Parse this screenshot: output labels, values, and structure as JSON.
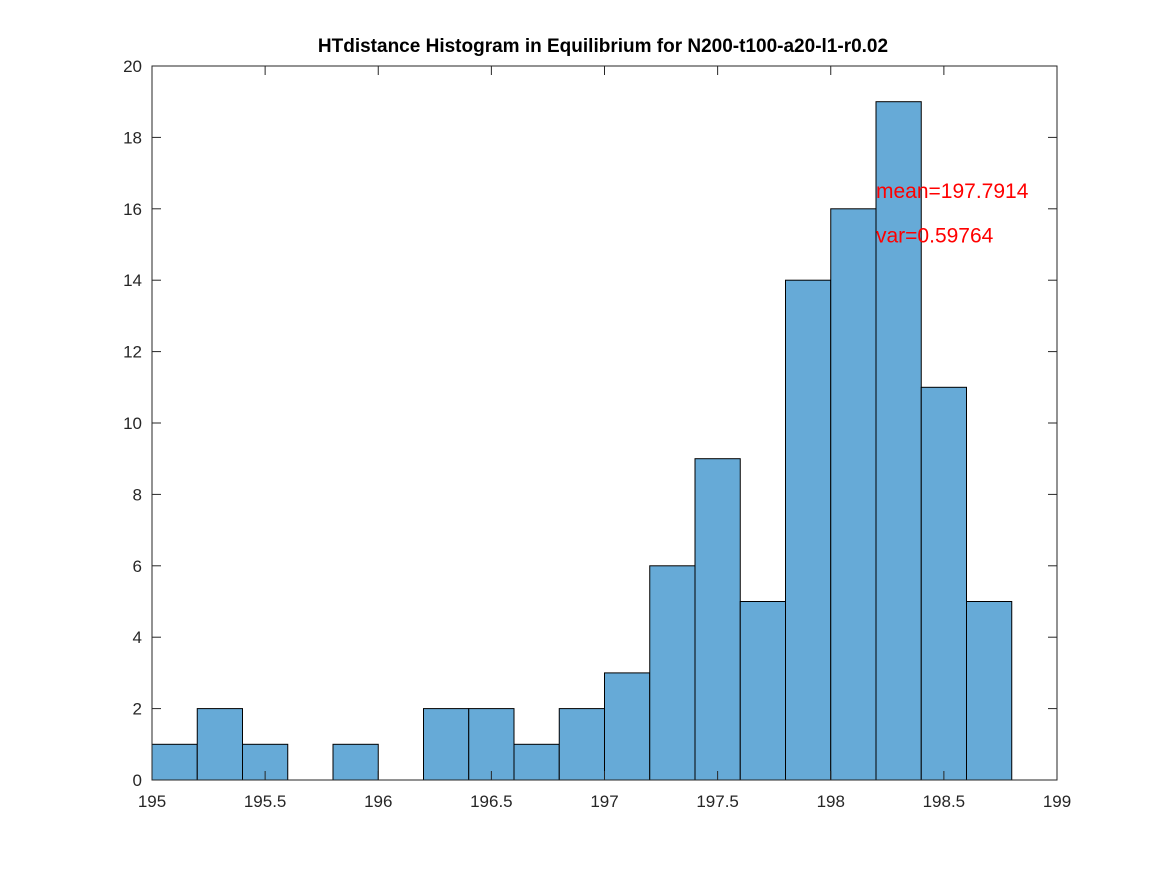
{
  "chart_data": {
    "type": "bar",
    "title": "HTdistance Histogram in Equilibrium for N200-t100-a20-l1-r0.02",
    "xlabel": "",
    "ylabel": "",
    "xlim": [
      195,
      199
    ],
    "ylim": [
      0,
      20
    ],
    "bin_width": 0.2,
    "bin_edges": [
      195.0,
      195.2,
      195.4,
      195.6,
      195.8,
      196.0,
      196.2,
      196.4,
      196.6,
      196.8,
      197.0,
      197.2,
      197.4,
      197.6,
      197.8,
      198.0,
      198.2,
      198.4,
      198.6,
      198.8
    ],
    "counts": [
      1,
      2,
      1,
      0,
      1,
      0,
      2,
      2,
      1,
      2,
      3,
      6,
      9,
      5,
      14,
      16,
      19,
      11,
      5
    ],
    "x_ticks": [
      195,
      195.5,
      196,
      196.5,
      197,
      197.5,
      198,
      198.5,
      199
    ],
    "x_tick_labels": [
      "195",
      "195.5",
      "196",
      "196.5",
      "197",
      "197.5",
      "198",
      "198.5",
      "199"
    ],
    "y_ticks": [
      0,
      2,
      4,
      6,
      8,
      10,
      12,
      14,
      16,
      18,
      20
    ],
    "y_tick_labels": [
      "0",
      "2",
      "4",
      "6",
      "8",
      "10",
      "12",
      "14",
      "16",
      "18",
      "20"
    ],
    "annotations": [
      {
        "text": "mean=197.7914",
        "x": 198.2,
        "y": 16.5,
        "color": "#ff0000"
      },
      {
        "text": "var=0.59764",
        "x": 198.2,
        "y": 15.25,
        "color": "#ff0000"
      }
    ],
    "bar_color": "#66aad7",
    "bar_edge_color": "#000000",
    "grid": false
  }
}
